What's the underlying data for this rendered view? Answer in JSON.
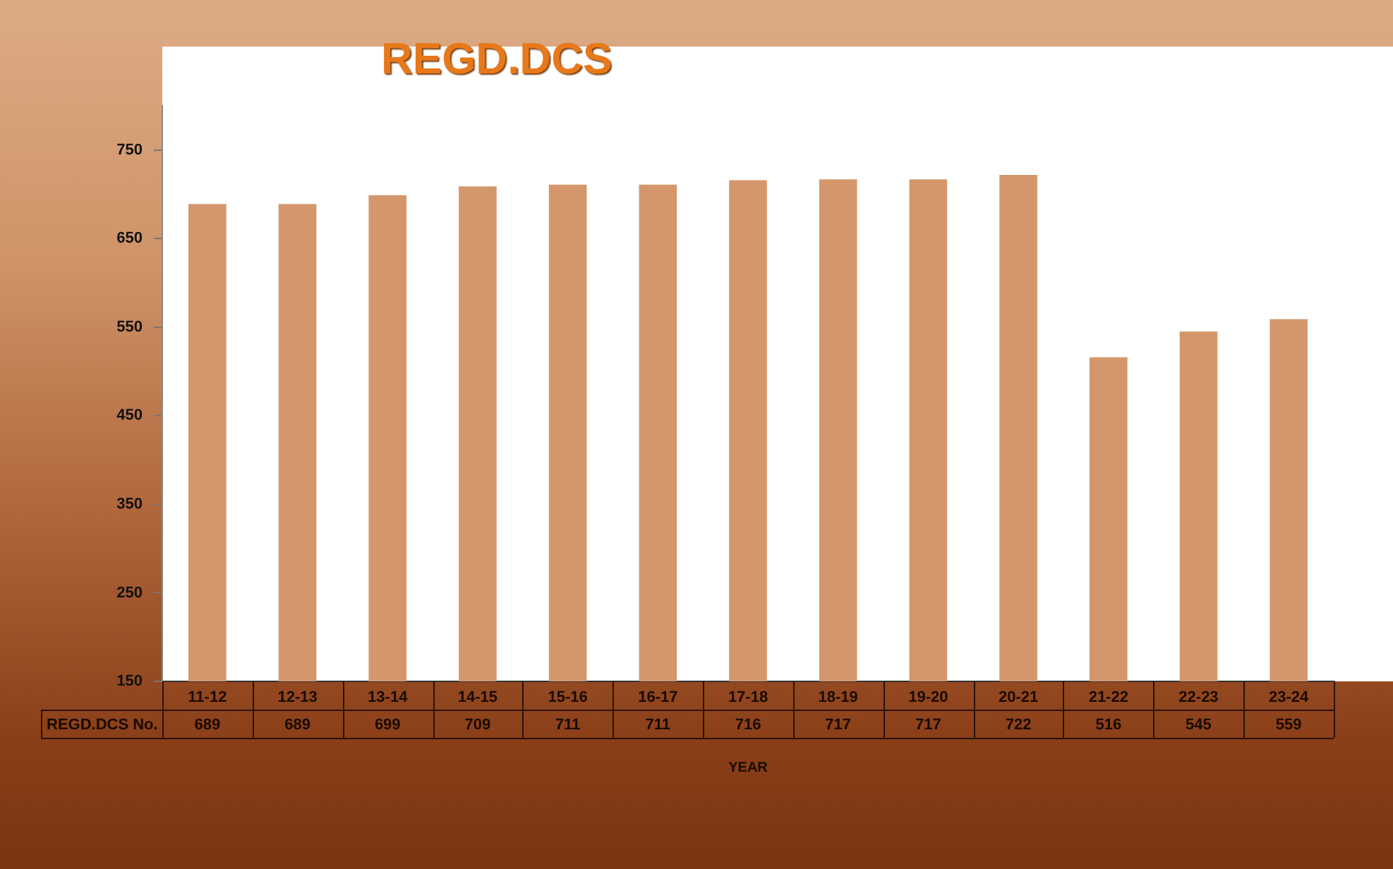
{
  "chart_data": {
    "type": "bar",
    "title": "REGD.DCS",
    "xlabel": "YEAR",
    "categories": [
      "11-12",
      "12-13",
      "13-14",
      "14-15",
      "15-16",
      "16-17",
      "17-18",
      "18-19",
      "19-20",
      "20-21",
      "21-22",
      "22-23",
      "23-24"
    ],
    "series": [
      {
        "name": "REGD.DCS No.",
        "color": "#d4976c",
        "values": [
          689,
          689,
          699,
          709,
          711,
          711,
          716,
          717,
          717,
          722,
          516,
          545,
          559
        ]
      }
    ],
    "ylim": [
      150,
      800
    ],
    "yticks": [
      150,
      250,
      350,
      450,
      550,
      650,
      750
    ],
    "grid": false,
    "legend": false,
    "data_labels": true
  }
}
